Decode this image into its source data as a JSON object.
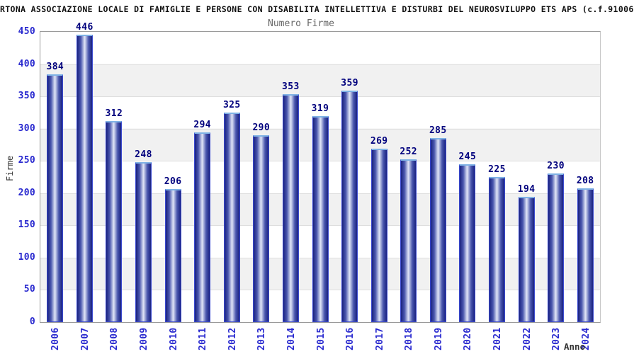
{
  "header": {
    "title": "RTONA ASSOCIAZIONE LOCALE DI FAMIGLIE E PERSONE CON DISABILITA INTELLETTIVA E DISTURBI DEL NEUROSVILUPPO ETS APS (c.f.91006"
  },
  "chart_data": {
    "type": "bar",
    "title": "Numero Firme",
    "xlabel": "Anno",
    "ylabel": "Firme",
    "categories": [
      "2006",
      "2007",
      "2008",
      "2009",
      "2010",
      "2011",
      "2012",
      "2013",
      "2014",
      "2015",
      "2016",
      "2017",
      "2018",
      "2019",
      "2020",
      "2021",
      "2022",
      "2023",
      "2024"
    ],
    "values": [
      384,
      446,
      312,
      248,
      206,
      294,
      325,
      290,
      353,
      319,
      359,
      269,
      252,
      285,
      245,
      225,
      194,
      230,
      208
    ],
    "ylim": [
      0,
      450
    ],
    "yticks": [
      0,
      50,
      100,
      150,
      200,
      250,
      300,
      350,
      400,
      450
    ],
    "grid": true,
    "legend": "none",
    "colors": {
      "bar_edge": "#3a49cf",
      "bar_top_highlight": "#7fb2e5",
      "bar_dark": "#1a2280",
      "bar_mid": "#4a57ae",
      "bar_light": "#e2e6f7",
      "value_label": "#00007d",
      "tick_label": "#2929cf",
      "band_gray": "#f1f1f1",
      "title_color": "#111111",
      "subtitle_color": "#666666"
    }
  }
}
